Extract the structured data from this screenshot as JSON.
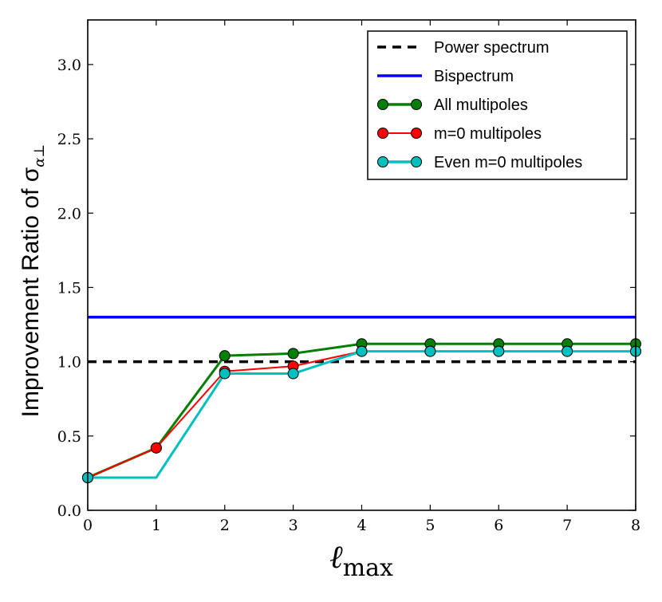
{
  "chart_data": {
    "type": "line",
    "title": "",
    "xlabel": "ℓ",
    "xlabel_sub": "max",
    "ylabel": "Improvement Ratio of σ",
    "ylabel_sub": "α⊥",
    "xlim": [
      0,
      8
    ],
    "ylim": [
      0,
      3.3
    ],
    "xticks": [
      0,
      1,
      2,
      3,
      4,
      5,
      6,
      7,
      8
    ],
    "yticks": [
      0.0,
      0.5,
      1.0,
      1.5,
      2.0,
      2.5,
      3.0
    ],
    "xtick_labels": [
      "0",
      "1",
      "2",
      "3",
      "4",
      "5",
      "6",
      "7",
      "8"
    ],
    "ytick_labels": [
      "0.0",
      "0.5",
      "1.0",
      "1.5",
      "2.0",
      "2.5",
      "3.0"
    ],
    "grid": false,
    "legend_position": "top-right",
    "x": [
      0,
      1,
      2,
      3,
      4,
      5,
      6,
      7,
      8
    ],
    "series": [
      {
        "name": "Power spectrum",
        "style": "dashed",
        "marker": false,
        "color": "#000000",
        "values": [
          1.0,
          1.0,
          1.0,
          1.0,
          1.0,
          1.0,
          1.0,
          1.0,
          1.0
        ]
      },
      {
        "name": "Bispectrum",
        "style": "solid",
        "marker": false,
        "color": "#0000ff",
        "values": [
          1.3,
          1.3,
          1.3,
          1.3,
          1.3,
          1.3,
          1.3,
          1.3,
          1.3
        ]
      },
      {
        "name": "All multipoles",
        "style": "solid",
        "marker": true,
        "color": "#007f00",
        "values": [
          0.22,
          0.42,
          1.04,
          1.055,
          1.12,
          1.12,
          1.12,
          1.12,
          1.12
        ]
      },
      {
        "name": "m=0 multipoles",
        "style": "solid",
        "marker": true,
        "color": "#ff0000",
        "values": [
          0.22,
          0.42,
          0.935,
          0.97,
          1.07,
          1.07,
          1.07,
          1.07,
          1.07
        ]
      },
      {
        "name": "Even m=0 multipoles",
        "style": "solid",
        "marker": true,
        "color": "#00bfbf",
        "markerless_x": [
          1
        ],
        "values": [
          0.22,
          0.22,
          0.92,
          0.92,
          1.07,
          1.07,
          1.07,
          1.07,
          1.07
        ]
      }
    ]
  }
}
